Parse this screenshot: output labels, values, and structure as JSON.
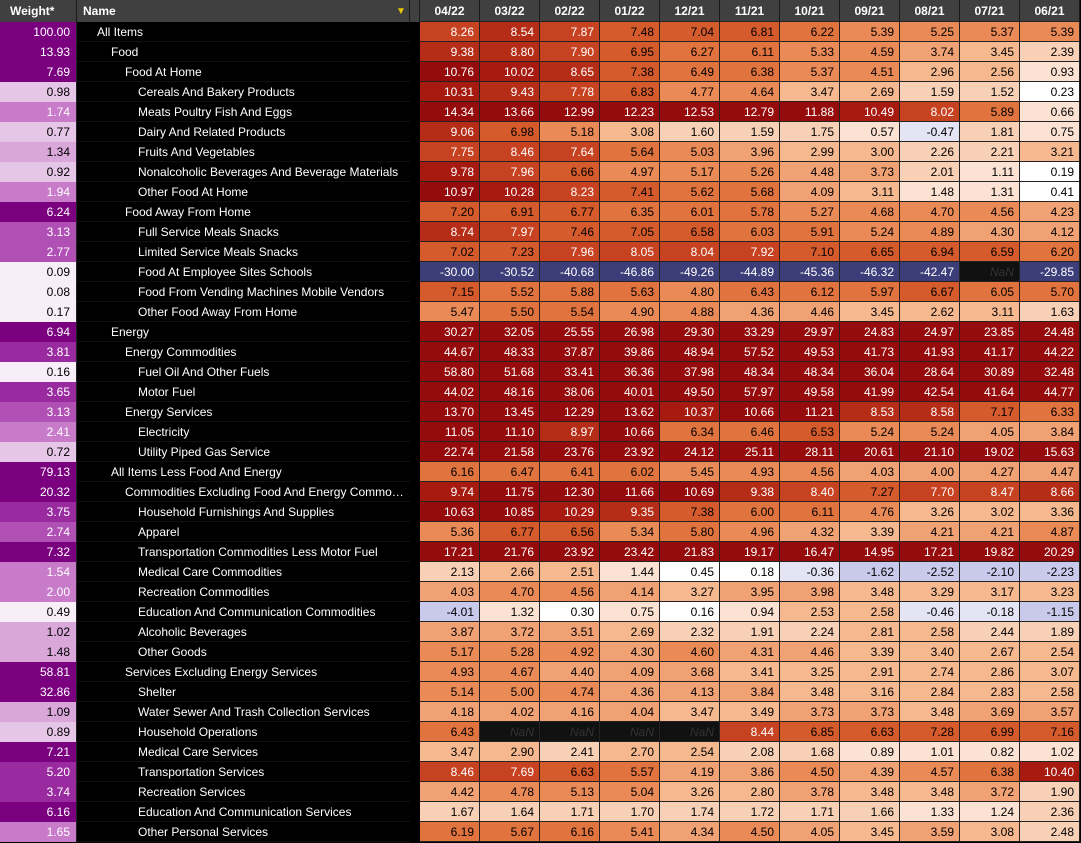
{
  "header": {
    "weight_label": "Weight*",
    "name_label": "Name",
    "filter_icon": "filter-icon",
    "columns": [
      "04/22",
      "03/22",
      "02/22",
      "01/22",
      "12/21",
      "11/21",
      "10/21",
      "09/21",
      "08/21",
      "07/21",
      "06/21"
    ]
  },
  "rows": [
    {
      "weight": "100.00",
      "name": "All Items",
      "level": 0,
      "values": [
        "8.26",
        "8.54",
        "7.87",
        "7.48",
        "7.04",
        "6.81",
        "6.22",
        "5.39",
        "5.25",
        "5.37",
        "5.39"
      ]
    },
    {
      "weight": "13.93",
      "name": "Food",
      "level": 1,
      "values": [
        "9.38",
        "8.80",
        "7.90",
        "6.95",
        "6.27",
        "6.11",
        "5.33",
        "4.59",
        "3.74",
        "3.45",
        "2.39"
      ]
    },
    {
      "weight": "7.69",
      "name": "Food At Home",
      "level": 2,
      "values": [
        "10.76",
        "10.02",
        "8.65",
        "7.38",
        "6.49",
        "6.38",
        "5.37",
        "4.51",
        "2.96",
        "2.56",
        "0.93"
      ]
    },
    {
      "weight": "0.98",
      "name": "Cereals And Bakery Products",
      "level": 3,
      "values": [
        "10.31",
        "9.43",
        "7.78",
        "6.83",
        "4.77",
        "4.64",
        "3.47",
        "2.69",
        "1.59",
        "1.52",
        "0.23"
      ]
    },
    {
      "weight": "1.74",
      "name": "Meats Poultry Fish And Eggs",
      "level": 3,
      "values": [
        "14.34",
        "13.66",
        "12.99",
        "12.23",
        "12.53",
        "12.79",
        "11.88",
        "10.49",
        "8.02",
        "5.89",
        "0.66"
      ]
    },
    {
      "weight": "0.77",
      "name": "Dairy And Related Products",
      "level": 3,
      "values": [
        "9.06",
        "6.98",
        "5.18",
        "3.08",
        "1.60",
        "1.59",
        "1.75",
        "0.57",
        "-0.47",
        "1.81",
        "0.75"
      ]
    },
    {
      "weight": "1.34",
      "name": "Fruits And Vegetables",
      "level": 3,
      "values": [
        "7.75",
        "8.46",
        "7.64",
        "5.64",
        "5.03",
        "3.96",
        "2.99",
        "3.00",
        "2.26",
        "2.21",
        "3.21"
      ]
    },
    {
      "weight": "0.92",
      "name": "Nonalcoholic Beverages And Beverage Materials",
      "level": 3,
      "values": [
        "9.78",
        "7.96",
        "6.66",
        "4.97",
        "5.17",
        "5.26",
        "4.48",
        "3.73",
        "2.01",
        "1.11",
        "0.19"
      ]
    },
    {
      "weight": "1.94",
      "name": "Other Food At Home",
      "level": 3,
      "values": [
        "10.97",
        "10.28",
        "8.23",
        "7.41",
        "5.62",
        "5.68",
        "4.09",
        "3.11",
        "1.48",
        "1.31",
        "0.41"
      ]
    },
    {
      "weight": "6.24",
      "name": "Food Away From Home",
      "level": 2,
      "values": [
        "7.20",
        "6.91",
        "6.77",
        "6.35",
        "6.01",
        "5.78",
        "5.27",
        "4.68",
        "4.70",
        "4.56",
        "4.23"
      ]
    },
    {
      "weight": "3.13",
      "name": "Full Service Meals  Snacks",
      "level": 3,
      "values": [
        "8.74",
        "7.97",
        "7.46",
        "7.05",
        "6.58",
        "6.03",
        "5.91",
        "5.24",
        "4.89",
        "4.30",
        "4.12"
      ]
    },
    {
      "weight": "2.77",
      "name": "Limited Service Meals  Snacks",
      "level": 3,
      "values": [
        "7.02",
        "7.23",
        "7.96",
        "8.05",
        "8.04",
        "7.92",
        "7.10",
        "6.65",
        "6.94",
        "6.59",
        "6.20"
      ]
    },
    {
      "weight": "0.09",
      "name": "Food At Employee Sites  Schools",
      "level": 3,
      "values": [
        "-30.00",
        "-30.52",
        "-40.68",
        "-46.86",
        "-49.26",
        "-44.89",
        "-45.36",
        "-46.32",
        "-42.47",
        "NaN",
        "-29.85"
      ]
    },
    {
      "weight": "0.08",
      "name": "Food From Vending Machines  Mobile Vendors",
      "level": 3,
      "values": [
        "7.15",
        "5.52",
        "5.88",
        "5.63",
        "4.80",
        "6.43",
        "6.12",
        "5.97",
        "6.67",
        "6.05",
        "5.70"
      ]
    },
    {
      "weight": "0.17",
      "name": "Other Food Away From Home",
      "level": 3,
      "values": [
        "5.47",
        "5.50",
        "5.54",
        "4.90",
        "4.88",
        "4.36",
        "4.46",
        "3.45",
        "2.62",
        "3.11",
        "1.63"
      ]
    },
    {
      "weight": "6.94",
      "name": "Energy",
      "level": 1,
      "values": [
        "30.27",
        "32.05",
        "25.55",
        "26.98",
        "29.30",
        "33.29",
        "29.97",
        "24.83",
        "24.97",
        "23.85",
        "24.48"
      ]
    },
    {
      "weight": "3.81",
      "name": "Energy Commodities",
      "level": 2,
      "values": [
        "44.67",
        "48.33",
        "37.87",
        "39.86",
        "48.94",
        "57.52",
        "49.53",
        "41.73",
        "41.93",
        "41.17",
        "44.22"
      ]
    },
    {
      "weight": "0.16",
      "name": "Fuel Oil And Other Fuels",
      "level": 3,
      "values": [
        "58.80",
        "51.68",
        "33.41",
        "36.36",
        "37.98",
        "48.34",
        "48.34",
        "36.04",
        "28.64",
        "30.89",
        "32.48"
      ]
    },
    {
      "weight": "3.65",
      "name": "Motor Fuel",
      "level": 3,
      "values": [
        "44.02",
        "48.16",
        "38.06",
        "40.01",
        "49.50",
        "57.97",
        "49.58",
        "41.99",
        "42.54",
        "41.64",
        "44.77"
      ]
    },
    {
      "weight": "3.13",
      "name": "Energy Services",
      "level": 2,
      "values": [
        "13.70",
        "13.45",
        "12.29",
        "13.62",
        "10.37",
        "10.66",
        "11.21",
        "8.53",
        "8.58",
        "7.17",
        "6.33"
      ]
    },
    {
      "weight": "2.41",
      "name": "Electricity",
      "level": 3,
      "values": [
        "11.05",
        "11.10",
        "8.97",
        "10.66",
        "6.34",
        "6.46",
        "6.53",
        "5.24",
        "5.24",
        "4.05",
        "3.84"
      ]
    },
    {
      "weight": "0.72",
      "name": "Utility Piped Gas Service",
      "level": 3,
      "values": [
        "22.74",
        "21.58",
        "23.76",
        "23.92",
        "24.12",
        "25.11",
        "28.11",
        "20.61",
        "21.10",
        "19.02",
        "15.63"
      ]
    },
    {
      "weight": "79.13",
      "name": "All Items Less Food And Energy",
      "level": 1,
      "values": [
        "6.16",
        "6.47",
        "6.41",
        "6.02",
        "5.45",
        "4.93",
        "4.56",
        "4.03",
        "4.00",
        "4.27",
        "4.47"
      ]
    },
    {
      "weight": "20.32",
      "name": "Commodities Excluding Food And Energy Commo…",
      "level": 2,
      "values": [
        "9.74",
        "11.75",
        "12.30",
        "11.66",
        "10.69",
        "9.38",
        "8.40",
        "7.27",
        "7.70",
        "8.47",
        "8.66"
      ]
    },
    {
      "weight": "3.75",
      "name": "Household Furnishings And Supplies",
      "level": 3,
      "values": [
        "10.63",
        "10.85",
        "10.29",
        "9.35",
        "7.38",
        "6.00",
        "6.11",
        "4.76",
        "3.26",
        "3.02",
        "3.36"
      ]
    },
    {
      "weight": "2.74",
      "name": "Apparel",
      "level": 3,
      "values": [
        "5.36",
        "6.77",
        "6.56",
        "5.34",
        "5.80",
        "4.96",
        "4.32",
        "3.39",
        "4.21",
        "4.21",
        "4.87"
      ]
    },
    {
      "weight": "7.32",
      "name": "Transportation Commodities Less Motor Fuel",
      "level": 3,
      "values": [
        "17.21",
        "21.76",
        "23.92",
        "23.42",
        "21.83",
        "19.17",
        "16.47",
        "14.95",
        "17.21",
        "19.82",
        "20.29"
      ]
    },
    {
      "weight": "1.54",
      "name": "Medical Care Commodities",
      "level": 3,
      "values": [
        "2.13",
        "2.66",
        "2.51",
        "1.44",
        "0.45",
        "0.18",
        "-0.36",
        "-1.62",
        "-2.52",
        "-2.10",
        "-2.23"
      ]
    },
    {
      "weight": "2.00",
      "name": "Recreation Commodities",
      "level": 3,
      "values": [
        "4.03",
        "4.70",
        "4.56",
        "4.14",
        "3.27",
        "3.95",
        "3.98",
        "3.48",
        "3.29",
        "3.17",
        "3.23"
      ]
    },
    {
      "weight": "0.49",
      "name": "Education And Communication Commodities",
      "level": 3,
      "values": [
        "-4.01",
        "1.32",
        "0.30",
        "0.75",
        "0.16",
        "0.94",
        "2.53",
        "2.58",
        "-0.46",
        "-0.18",
        "-1.15"
      ]
    },
    {
      "weight": "1.02",
      "name": "Alcoholic Beverages",
      "level": 3,
      "values": [
        "3.87",
        "3.72",
        "3.51",
        "2.69",
        "2.32",
        "1.91",
        "2.24",
        "2.81",
        "2.58",
        "2.44",
        "1.89"
      ]
    },
    {
      "weight": "1.48",
      "name": "Other Goods",
      "level": 3,
      "values": [
        "5.17",
        "5.28",
        "4.92",
        "4.30",
        "4.60",
        "4.31",
        "4.46",
        "3.39",
        "3.40",
        "2.67",
        "2.54"
      ]
    },
    {
      "weight": "58.81",
      "name": "Services Excluding Energy Services",
      "level": 2,
      "values": [
        "4.93",
        "4.67",
        "4.40",
        "4.09",
        "3.68",
        "3.41",
        "3.25",
        "2.91",
        "2.74",
        "2.86",
        "3.07"
      ]
    },
    {
      "weight": "32.86",
      "name": "Shelter",
      "level": 3,
      "values": [
        "5.14",
        "5.00",
        "4.74",
        "4.36",
        "4.13",
        "3.84",
        "3.48",
        "3.16",
        "2.84",
        "2.83",
        "2.58"
      ]
    },
    {
      "weight": "1.09",
      "name": "Water Sewer And Trash Collection Services",
      "level": 3,
      "values": [
        "4.18",
        "4.02",
        "4.16",
        "4.04",
        "3.47",
        "3.49",
        "3.73",
        "3.73",
        "3.48",
        "3.69",
        "3.57"
      ]
    },
    {
      "weight": "0.89",
      "name": "Household Operations",
      "level": 3,
      "values": [
        "6.43",
        "NaN",
        "NaN",
        "NaN",
        "NaN",
        "8.44",
        "6.85",
        "6.63",
        "7.28",
        "6.99",
        "7.16"
      ]
    },
    {
      "weight": "7.21",
      "name": "Medical Care Services",
      "level": 3,
      "values": [
        "3.47",
        "2.90",
        "2.41",
        "2.70",
        "2.54",
        "2.08",
        "1.68",
        "0.89",
        "1.01",
        "0.82",
        "1.02"
      ]
    },
    {
      "weight": "5.20",
      "name": "Transportation Services",
      "level": 3,
      "values": [
        "8.46",
        "7.69",
        "6.63",
        "5.57",
        "4.19",
        "3.86",
        "4.50",
        "4.39",
        "4.57",
        "6.38",
        "10.40"
      ]
    },
    {
      "weight": "3.74",
      "name": "Recreation Services",
      "level": 3,
      "values": [
        "4.42",
        "4.78",
        "5.13",
        "5.04",
        "3.26",
        "2.80",
        "3.78",
        "3.48",
        "3.48",
        "3.72",
        "1.90"
      ]
    },
    {
      "weight": "6.16",
      "name": "Education And Communication Services",
      "level": 3,
      "values": [
        "1.67",
        "1.64",
        "1.71",
        "1.70",
        "1.74",
        "1.72",
        "1.71",
        "1.66",
        "1.33",
        "1.24",
        "2.36"
      ]
    },
    {
      "weight": "1.65",
      "name": "Other Personal Services",
      "level": 3,
      "values": [
        "6.19",
        "5.67",
        "6.16",
        "5.41",
        "4.34",
        "4.50",
        "4.05",
        "3.45",
        "3.59",
        "3.08",
        "2.48"
      ]
    }
  ]
}
